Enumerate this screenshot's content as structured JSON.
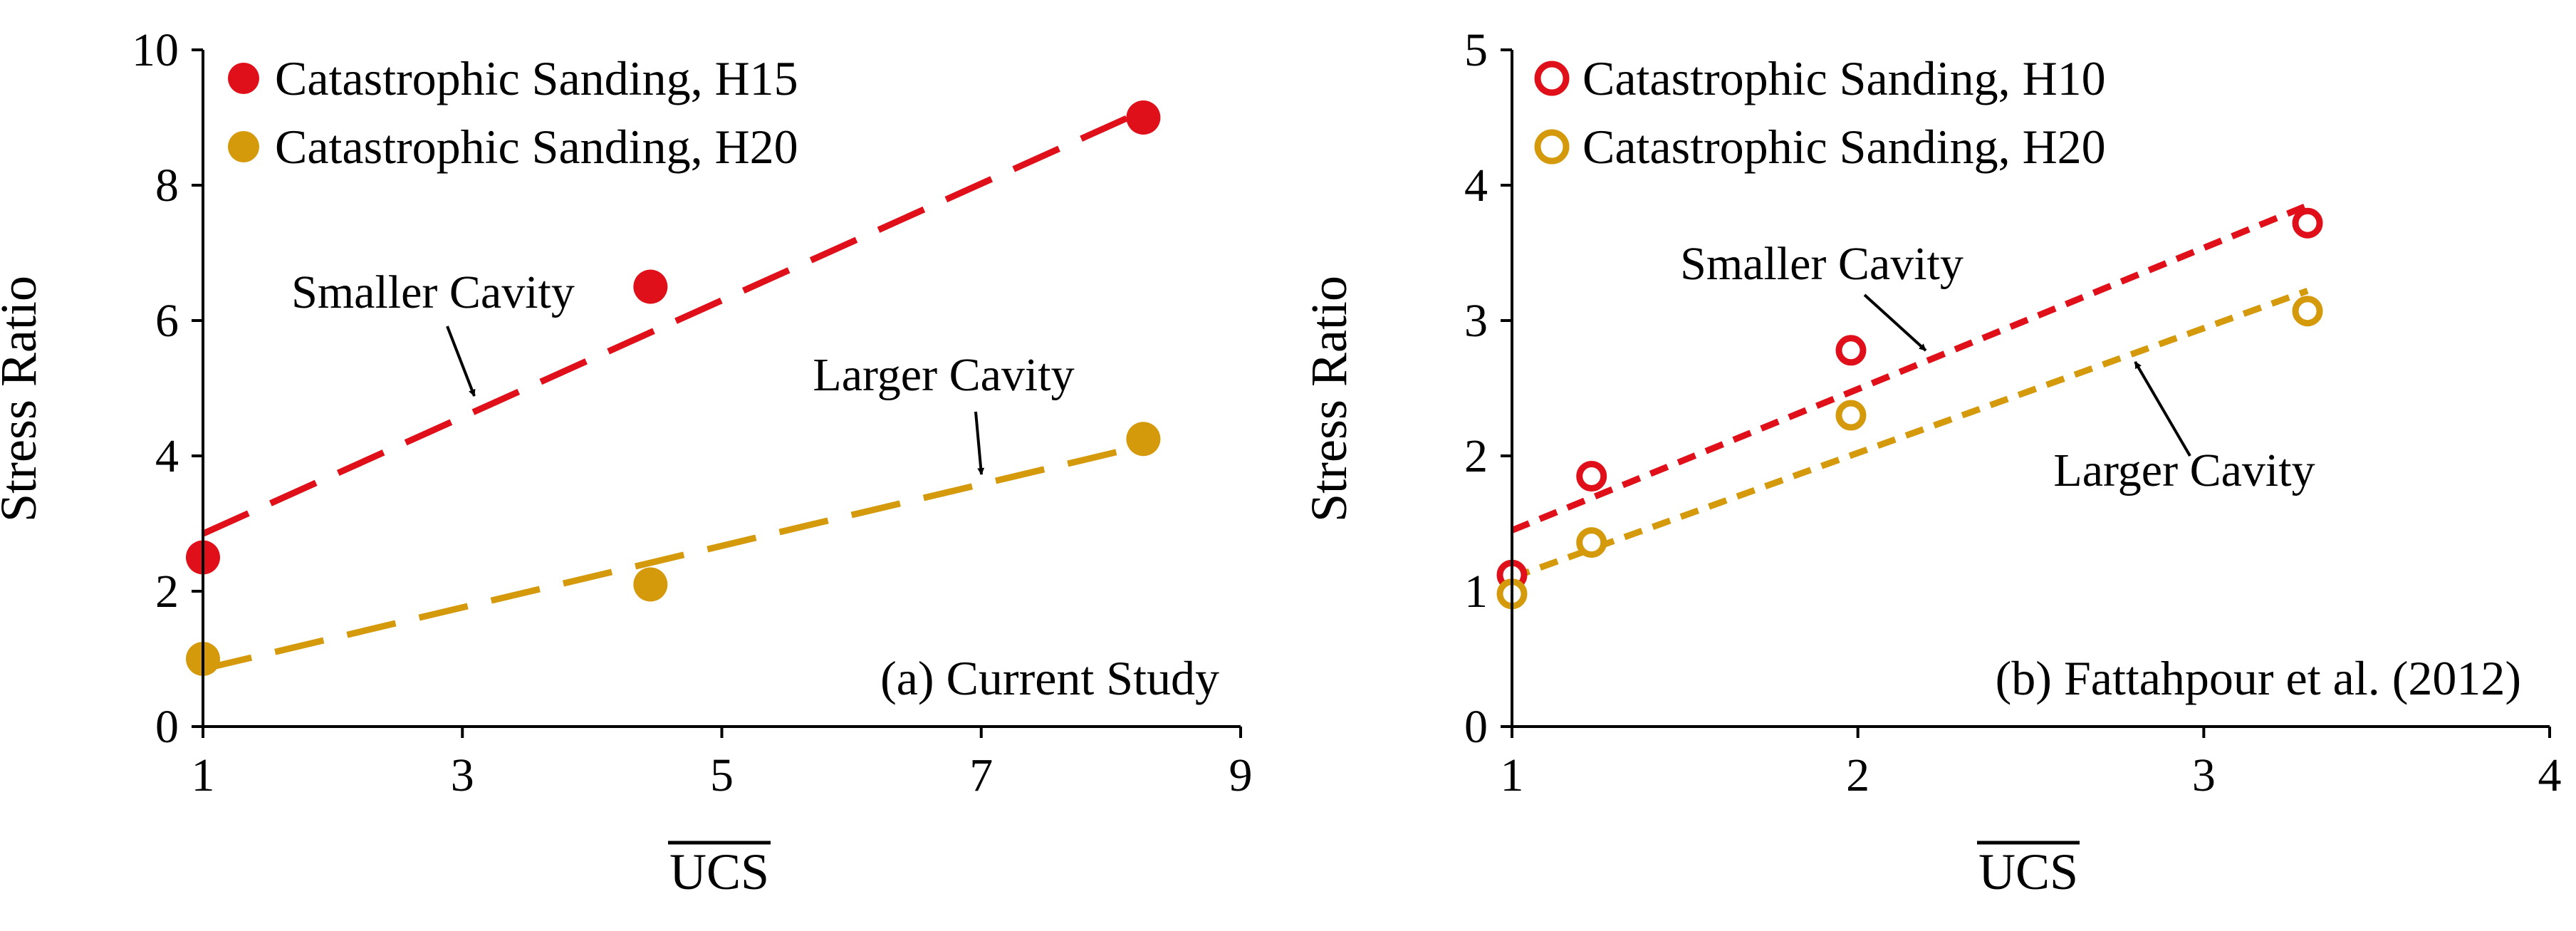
{
  "colors": {
    "red": "#E0101A",
    "gold": "#D49A0C",
    "axis": "#000000"
  },
  "chart_data": [
    {
      "id": "a",
      "type": "scatter",
      "marker_style": "filled",
      "title": "(a) Current Study",
      "xlabel": "UCS",
      "ylabel": "Stress Ratio",
      "xlim": [
        1,
        9
      ],
      "ylim": [
        0,
        10
      ],
      "xticks": [
        1,
        3,
        5,
        7,
        9
      ],
      "yticks": [
        0,
        2,
        4,
        6,
        8,
        10
      ],
      "legend_position": "top-left",
      "series": [
        {
          "name": "Catastrophic Sanding, H15",
          "color": "#E0101A",
          "x": [
            1,
            4.45,
            8.25
          ],
          "y": [
            2.5,
            6.5,
            9.0
          ],
          "trendline": {
            "x": [
              1,
              8.25
            ],
            "y": [
              2.85,
              9.1
            ],
            "style": "long-dash"
          }
        },
        {
          "name": "Catastrophic Sanding, H20",
          "color": "#D49A0C",
          "x": [
            1,
            4.45,
            8.25
          ],
          "y": [
            1.0,
            2.1,
            4.25
          ],
          "trendline": {
            "x": [
              1,
              8.25
            ],
            "y": [
              0.85,
              4.15
            ],
            "style": "long-dash"
          }
        }
      ],
      "annotations": [
        {
          "text": "Smaller Cavity",
          "x": 3.0,
          "y": 6.5,
          "arrow_to": [
            3.05,
            4.75
          ]
        },
        {
          "text": "Larger Cavity",
          "x": 7.0,
          "y": 5.2,
          "arrow_to": [
            6.95,
            3.6
          ]
        }
      ]
    },
    {
      "id": "b",
      "type": "scatter",
      "marker_style": "hollow",
      "title": "(b) Fattahpour et al. (2012)",
      "xlabel": "UCS",
      "ylabel": "Stress Ratio",
      "xlim": [
        1,
        4
      ],
      "ylim": [
        0,
        5
      ],
      "xticks": [
        1,
        2,
        3,
        4
      ],
      "yticks": [
        0,
        1,
        2,
        3,
        4,
        5
      ],
      "legend_position": "top-left",
      "series": [
        {
          "name": "Catastrophic Sanding, H10",
          "color": "#E0101A",
          "x": [
            1,
            1.23,
            1.98,
            3.3
          ],
          "y": [
            1.12,
            1.85,
            2.78,
            3.72
          ],
          "trendline": {
            "x": [
              1,
              3.3
            ],
            "y": [
              1.45,
              3.85
            ],
            "style": "short-dash"
          }
        },
        {
          "name": "Catastrophic Sanding, H20",
          "color": "#D49A0C",
          "x": [
            1,
            1.23,
            1.98,
            3.3
          ],
          "y": [
            0.98,
            1.36,
            2.3,
            3.07
          ],
          "trendline": {
            "x": [
              1,
              3.3
            ],
            "y": [
              1.1,
              3.22
            ],
            "style": "short-dash"
          }
        }
      ],
      "annotations": [
        {
          "text": "Smaller Cavity",
          "x": 1.95,
          "y": 3.35,
          "arrow_to": [
            2.22,
            2.78
          ]
        },
        {
          "text": "Larger Cavity",
          "x": 3.12,
          "y": 1.85,
          "arrow_to": [
            2.77,
            2.72
          ]
        }
      ]
    }
  ]
}
